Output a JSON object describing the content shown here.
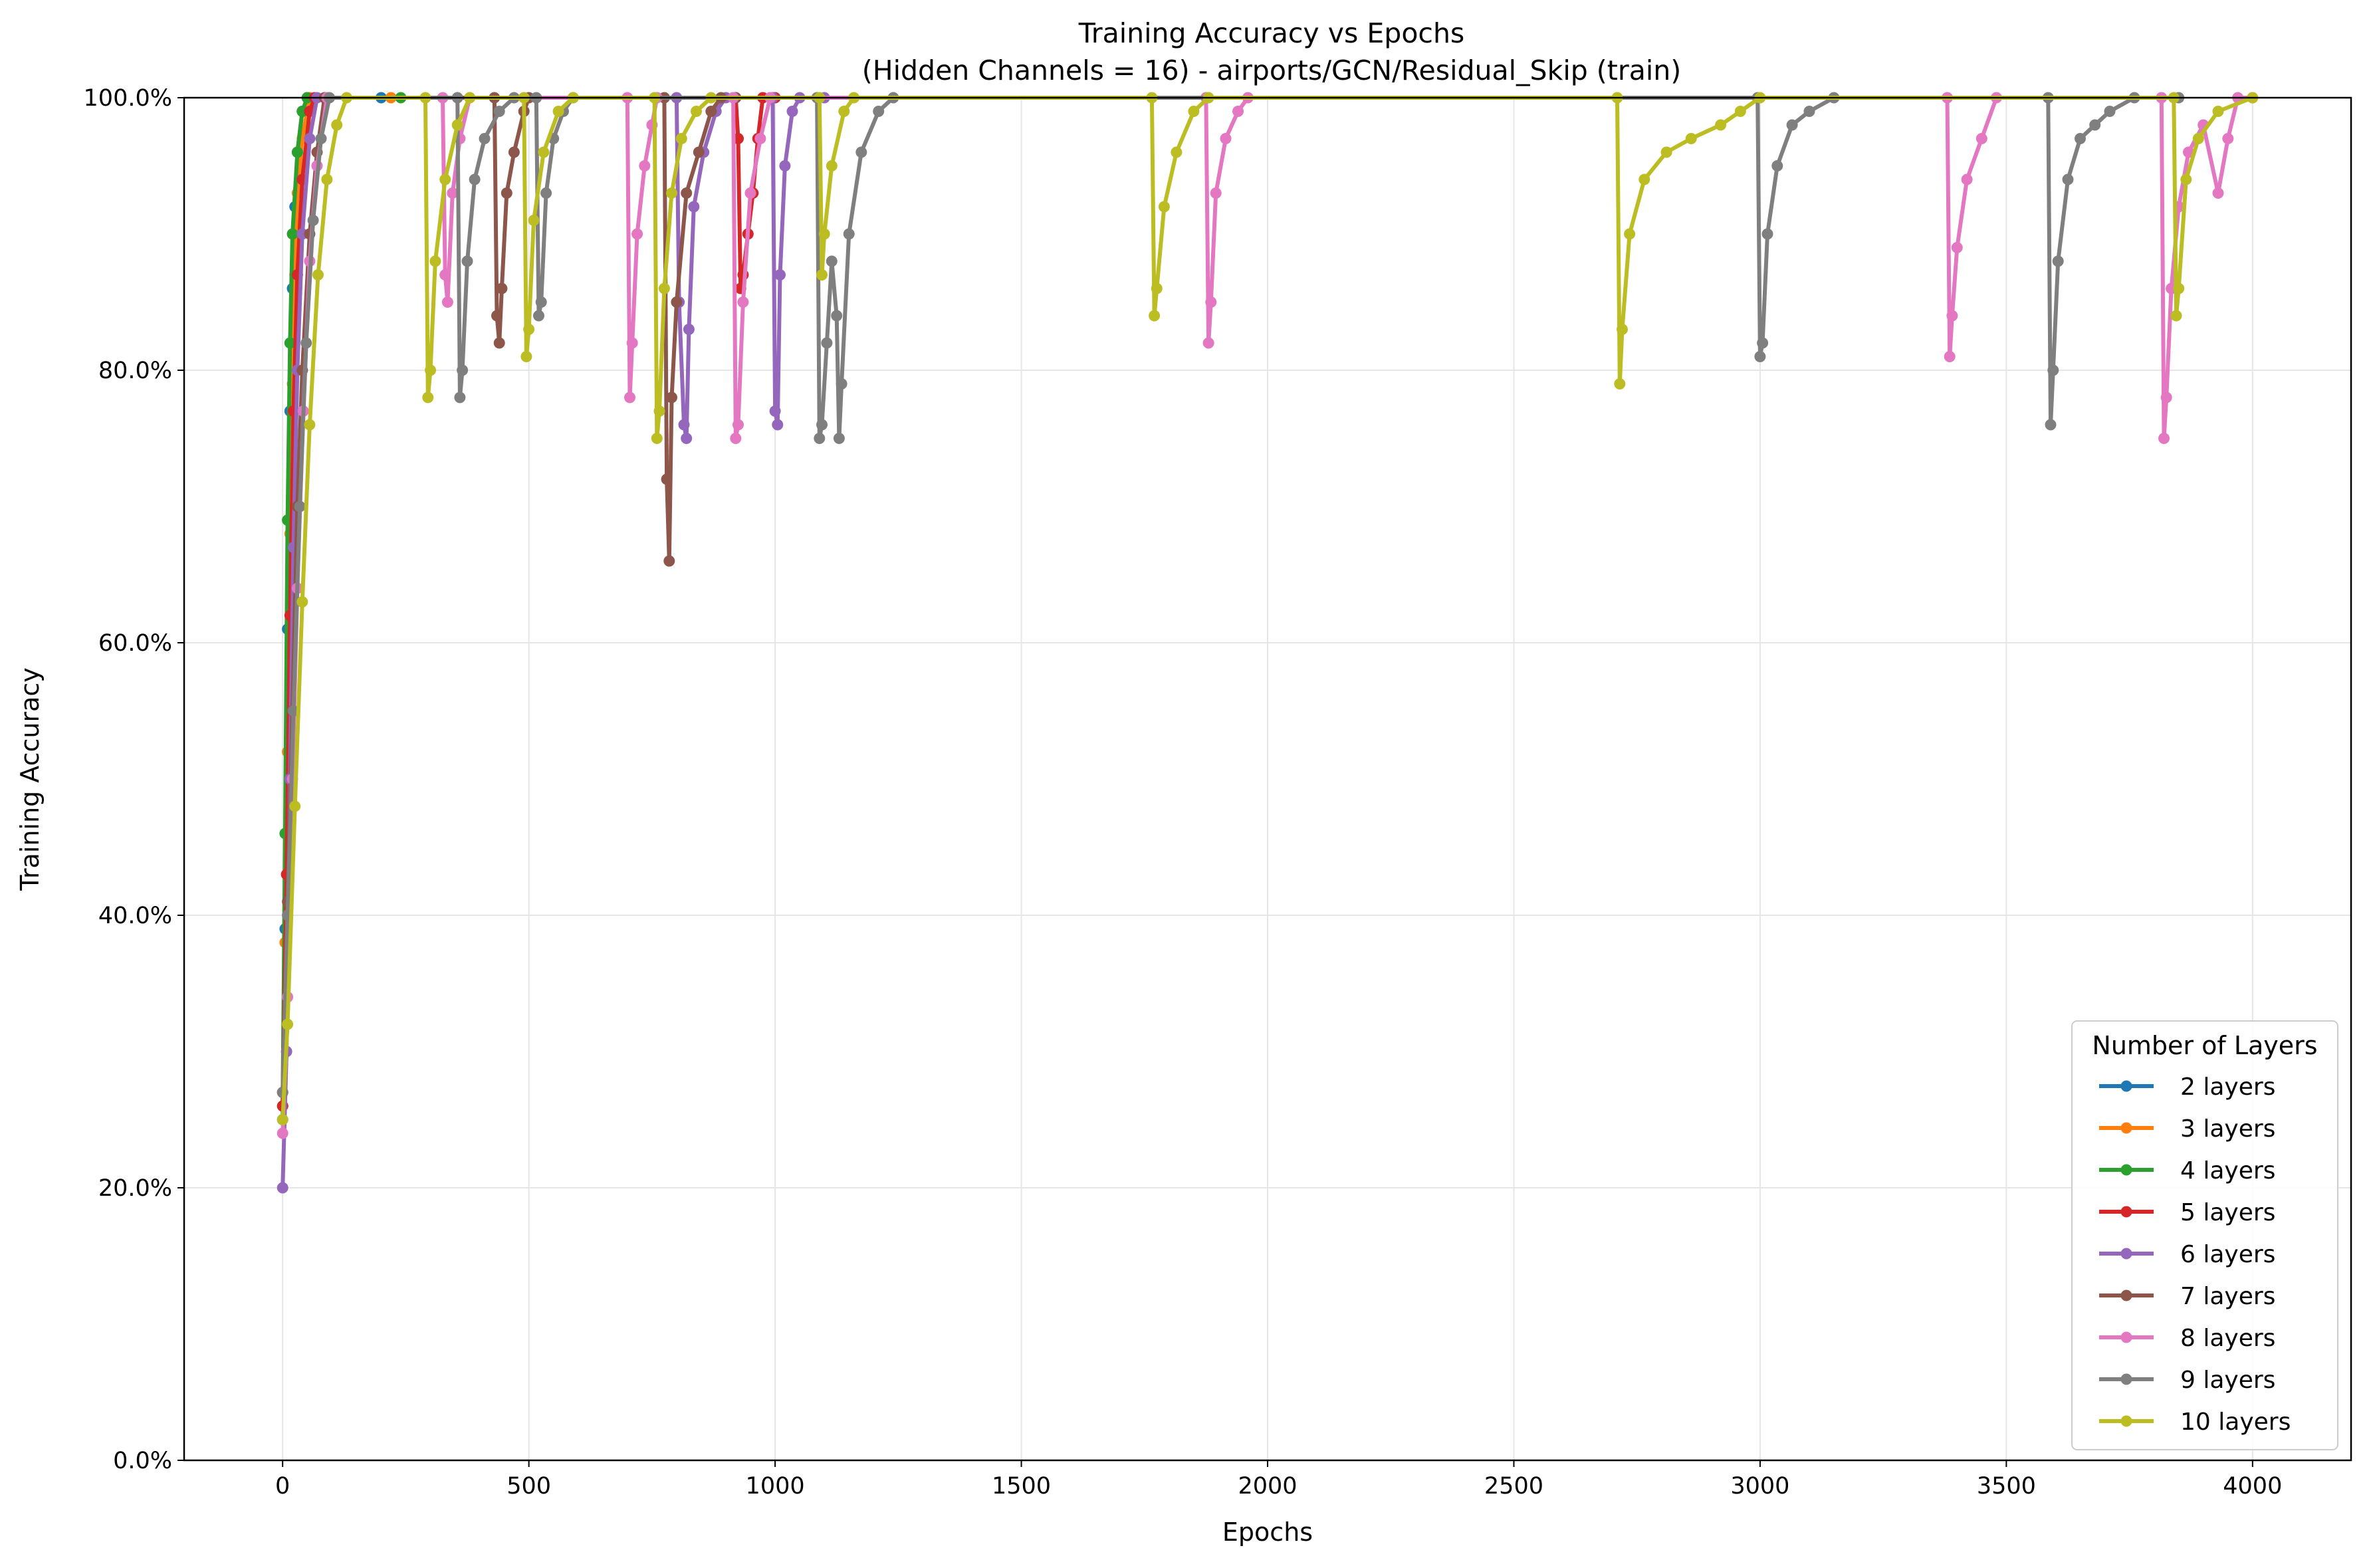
{
  "chart_data": {
    "type": "line",
    "title": "Training Accuracy vs Epochs",
    "subtitle": "(Hidden Channels = 16) - airports/GCN/Residual_Skip (train)",
    "xlabel": "Epochs",
    "ylabel": "Training Accuracy",
    "xlim": [
      -200,
      4200
    ],
    "ylim": [
      0,
      1
    ],
    "x_ticks": [
      0,
      500,
      1000,
      1500,
      2000,
      2500,
      3000,
      3500,
      4000
    ],
    "x_tick_labels": [
      "0",
      "500",
      "1000",
      "1500",
      "2000",
      "2500",
      "3000",
      "3500",
      "4000"
    ],
    "y_ticks": [
      0,
      0.2,
      0.4,
      0.6,
      0.8,
      1.0
    ],
    "y_tick_labels": [
      "0.0%",
      "20.0%",
      "40.0%",
      "60.0%",
      "80.0%",
      "100.0%"
    ],
    "grid": true,
    "legend": {
      "title": "Number of Layers",
      "position": "lower right"
    },
    "series": [
      {
        "name": "2 layers",
        "color": "#1f77b4",
        "points": [
          [
            0,
            0.25
          ],
          [
            5,
            0.39
          ],
          [
            10,
            0.61
          ],
          [
            15,
            0.77
          ],
          [
            20,
            0.86
          ],
          [
            25,
            0.92
          ],
          [
            30,
            0.96
          ],
          [
            40,
            0.99
          ],
          [
            50,
            1.0
          ],
          [
            200,
            1.0
          ]
        ]
      },
      {
        "name": "3 layers",
        "color": "#ff7f0e",
        "points": [
          [
            0,
            0.27
          ],
          [
            5,
            0.38
          ],
          [
            10,
            0.52
          ],
          [
            15,
            0.68
          ],
          [
            20,
            0.79
          ],
          [
            25,
            0.87
          ],
          [
            30,
            0.93
          ],
          [
            40,
            0.97
          ],
          [
            55,
            1.0
          ],
          [
            220,
            1.0
          ]
        ]
      },
      {
        "name": "4 layers",
        "color": "#2ca02c",
        "points": [
          [
            0,
            0.26
          ],
          [
            5,
            0.46
          ],
          [
            10,
            0.69
          ],
          [
            15,
            0.82
          ],
          [
            20,
            0.9
          ],
          [
            30,
            0.96
          ],
          [
            40,
            0.99
          ],
          [
            50,
            1.0
          ],
          [
            240,
            1.0
          ]
        ]
      },
      {
        "name": "5 layers",
        "color": "#d62728",
        "points": [
          [
            0,
            0.26
          ],
          [
            8,
            0.43
          ],
          [
            15,
            0.62
          ],
          [
            22,
            0.77
          ],
          [
            30,
            0.87
          ],
          [
            40,
            0.94
          ],
          [
            55,
            0.99
          ],
          [
            65,
            1.0
          ],
          [
            920,
            1.0
          ],
          [
            925,
            0.97
          ],
          [
            930,
            0.86
          ],
          [
            935,
            0.87
          ],
          [
            945,
            0.9
          ],
          [
            955,
            0.93
          ],
          [
            965,
            0.97
          ],
          [
            975,
            1.0
          ],
          [
            1000,
            1.0
          ]
        ]
      },
      {
        "name": "6 layers",
        "color": "#9467bd",
        "points": [
          [
            0,
            0.2
          ],
          [
            8,
            0.3
          ],
          [
            15,
            0.5
          ],
          [
            22,
            0.67
          ],
          [
            30,
            0.8
          ],
          [
            40,
            0.9
          ],
          [
            55,
            0.97
          ],
          [
            70,
            1.0
          ],
          [
            800,
            1.0
          ],
          [
            805,
            0.85
          ],
          [
            815,
            0.76
          ],
          [
            820,
            0.75
          ],
          [
            825,
            0.83
          ],
          [
            835,
            0.92
          ],
          [
            855,
            0.96
          ],
          [
            880,
            0.99
          ],
          [
            900,
            1.0
          ],
          [
            995,
            1.0
          ],
          [
            1000,
            0.77
          ],
          [
            1005,
            0.76
          ],
          [
            1010,
            0.87
          ],
          [
            1020,
            0.95
          ],
          [
            1035,
            0.99
          ],
          [
            1050,
            1.0
          ],
          [
            1100,
            1.0
          ]
        ]
      },
      {
        "name": "7 layers",
        "color": "#8c564b",
        "points": [
          [
            0,
            0.27
          ],
          [
            10,
            0.41
          ],
          [
            20,
            0.55
          ],
          [
            30,
            0.7
          ],
          [
            40,
            0.8
          ],
          [
            55,
            0.9
          ],
          [
            70,
            0.96
          ],
          [
            85,
            1.0
          ],
          [
            430,
            1.0
          ],
          [
            435,
            0.84
          ],
          [
            440,
            0.82
          ],
          [
            445,
            0.86
          ],
          [
            455,
            0.93
          ],
          [
            470,
            0.96
          ],
          [
            490,
            0.99
          ],
          [
            500,
            1.0
          ],
          [
            775,
            1.0
          ],
          [
            780,
            0.72
          ],
          [
            785,
            0.66
          ],
          [
            790,
            0.78
          ],
          [
            800,
            0.85
          ],
          [
            820,
            0.93
          ],
          [
            845,
            0.96
          ],
          [
            870,
            0.99
          ],
          [
            890,
            1.0
          ],
          [
            920,
            1.0
          ]
        ]
      },
      {
        "name": "8 layers",
        "color": "#e377c2",
        "points": [
          [
            0,
            0.24
          ],
          [
            10,
            0.34
          ],
          [
            20,
            0.5
          ],
          [
            30,
            0.64
          ],
          [
            42,
            0.77
          ],
          [
            55,
            0.88
          ],
          [
            70,
            0.95
          ],
          [
            90,
            1.0
          ],
          [
            325,
            1.0
          ],
          [
            330,
            0.87
          ],
          [
            335,
            0.85
          ],
          [
            345,
            0.93
          ],
          [
            360,
            0.97
          ],
          [
            380,
            1.0
          ],
          [
            700,
            1.0
          ],
          [
            705,
            0.78
          ],
          [
            710,
            0.82
          ],
          [
            720,
            0.9
          ],
          [
            735,
            0.95
          ],
          [
            750,
            0.98
          ],
          [
            760,
            1.0
          ],
          [
            915,
            1.0
          ],
          [
            920,
            0.75
          ],
          [
            925,
            0.76
          ],
          [
            935,
            0.85
          ],
          [
            950,
            0.93
          ],
          [
            970,
            0.97
          ],
          [
            990,
            1.0
          ],
          [
            1875,
            1.0
          ],
          [
            1880,
            0.82
          ],
          [
            1885,
            0.85
          ],
          [
            1895,
            0.93
          ],
          [
            1915,
            0.97
          ],
          [
            1940,
            0.99
          ],
          [
            1960,
            1.0
          ],
          [
            3380,
            1.0
          ],
          [
            3385,
            0.81
          ],
          [
            3390,
            0.84
          ],
          [
            3400,
            0.89
          ],
          [
            3420,
            0.94
          ],
          [
            3450,
            0.97
          ],
          [
            3480,
            1.0
          ],
          [
            3815,
            1.0
          ],
          [
            3820,
            0.75
          ],
          [
            3825,
            0.78
          ],
          [
            3835,
            0.86
          ],
          [
            3850,
            0.92
          ],
          [
            3870,
            0.96
          ],
          [
            3900,
            0.98
          ],
          [
            3930,
            0.93
          ],
          [
            3950,
            0.97
          ],
          [
            3970,
            1.0
          ],
          [
            4000,
            1.0
          ]
        ]
      },
      {
        "name": "9 layers",
        "color": "#7f7f7f",
        "points": [
          [
            0,
            0.27
          ],
          [
            10,
            0.4
          ],
          [
            22,
            0.55
          ],
          [
            35,
            0.7
          ],
          [
            48,
            0.82
          ],
          [
            62,
            0.91
          ],
          [
            78,
            0.97
          ],
          [
            95,
            1.0
          ],
          [
            355,
            1.0
          ],
          [
            360,
            0.78
          ],
          [
            365,
            0.8
          ],
          [
            375,
            0.88
          ],
          [
            390,
            0.94
          ],
          [
            410,
            0.97
          ],
          [
            440,
            0.99
          ],
          [
            470,
            1.0
          ],
          [
            515,
            1.0
          ],
          [
            520,
            0.84
          ],
          [
            525,
            0.85
          ],
          [
            535,
            0.93
          ],
          [
            550,
            0.97
          ],
          [
            570,
            0.99
          ],
          [
            590,
            1.0
          ],
          [
            1085,
            1.0
          ],
          [
            1090,
            0.75
          ],
          [
            1095,
            0.76
          ],
          [
            1105,
            0.82
          ],
          [
            1115,
            0.88
          ],
          [
            1125,
            0.84
          ],
          [
            1130,
            0.75
          ],
          [
            1135,
            0.79
          ],
          [
            1150,
            0.9
          ],
          [
            1175,
            0.96
          ],
          [
            1210,
            0.99
          ],
          [
            1240,
            1.0
          ],
          [
            2995,
            1.0
          ],
          [
            3000,
            0.81
          ],
          [
            3005,
            0.82
          ],
          [
            3015,
            0.9
          ],
          [
            3035,
            0.95
          ],
          [
            3065,
            0.98
          ],
          [
            3100,
            0.99
          ],
          [
            3150,
            1.0
          ],
          [
            3585,
            1.0
          ],
          [
            3590,
            0.76
          ],
          [
            3595,
            0.8
          ],
          [
            3605,
            0.88
          ],
          [
            3625,
            0.94
          ],
          [
            3650,
            0.97
          ],
          [
            3680,
            0.98
          ],
          [
            3710,
            0.99
          ],
          [
            3760,
            1.0
          ],
          [
            3850,
            1.0
          ]
        ]
      },
      {
        "name": "10 layers",
        "color": "#bcbd22",
        "points": [
          [
            0,
            0.25
          ],
          [
            10,
            0.32
          ],
          [
            25,
            0.48
          ],
          [
            40,
            0.63
          ],
          [
            55,
            0.76
          ],
          [
            72,
            0.87
          ],
          [
            90,
            0.94
          ],
          [
            110,
            0.98
          ],
          [
            130,
            1.0
          ],
          [
            290,
            1.0
          ],
          [
            295,
            0.78
          ],
          [
            300,
            0.8
          ],
          [
            310,
            0.88
          ],
          [
            330,
            0.94
          ],
          [
            355,
            0.98
          ],
          [
            380,
            1.0
          ],
          [
            490,
            1.0
          ],
          [
            495,
            0.81
          ],
          [
            500,
            0.83
          ],
          [
            510,
            0.91
          ],
          [
            530,
            0.96
          ],
          [
            560,
            0.99
          ],
          [
            590,
            1.0
          ],
          [
            755,
            1.0
          ],
          [
            760,
            0.75
          ],
          [
            765,
            0.77
          ],
          [
            775,
            0.86
          ],
          [
            790,
            0.93
          ],
          [
            810,
            0.97
          ],
          [
            840,
            0.99
          ],
          [
            870,
            1.0
          ],
          [
            1090,
            1.0
          ],
          [
            1095,
            0.87
          ],
          [
            1100,
            0.9
          ],
          [
            1115,
            0.95
          ],
          [
            1140,
            0.99
          ],
          [
            1160,
            1.0
          ],
          [
            1765,
            1.0
          ],
          [
            1770,
            0.84
          ],
          [
            1775,
            0.86
          ],
          [
            1790,
            0.92
          ],
          [
            1815,
            0.96
          ],
          [
            1850,
            0.99
          ],
          [
            1880,
            1.0
          ],
          [
            2710,
            1.0
          ],
          [
            2715,
            0.79
          ],
          [
            2720,
            0.83
          ],
          [
            2735,
            0.9
          ],
          [
            2765,
            0.94
          ],
          [
            2810,
            0.96
          ],
          [
            2860,
            0.97
          ],
          [
            2920,
            0.98
          ],
          [
            2960,
            0.99
          ],
          [
            3000,
            1.0
          ],
          [
            3840,
            1.0
          ],
          [
            3845,
            0.84
          ],
          [
            3850,
            0.86
          ],
          [
            3865,
            0.94
          ],
          [
            3890,
            0.97
          ],
          [
            3930,
            0.99
          ],
          [
            4000,
            1.0
          ]
        ]
      }
    ]
  }
}
